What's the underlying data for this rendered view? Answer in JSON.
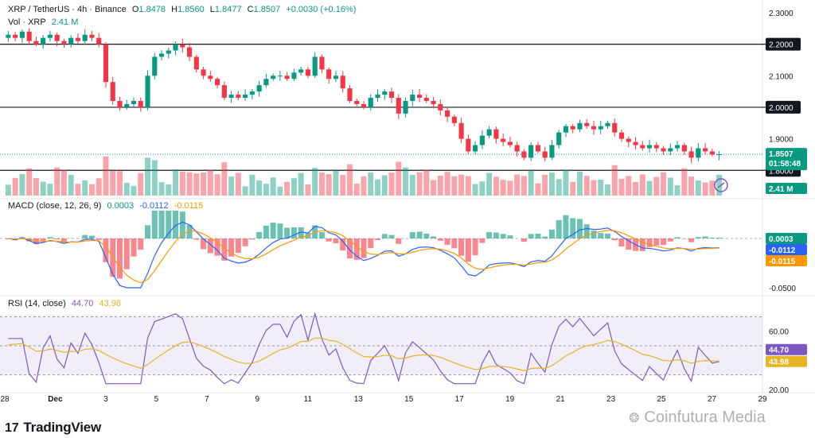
{
  "header": {
    "symbol": "XRP / TetherUS · 4h · Binance",
    "o_label": "O",
    "o_value": "1.8478",
    "h_label": "H",
    "h_value": "1.8560",
    "l_label": "L",
    "l_value": "1.8477",
    "c_label": "C",
    "c_value": "1.8507",
    "change": "+0.0030 (+0.16%)",
    "vol_label": "Vol · XRP",
    "vol_value": "2.41 M"
  },
  "macd_legend": {
    "label": "MACD (close, 12, 26, 9)",
    "hist": "0.0003",
    "macd": "-0.0112",
    "signal": "-0.0115"
  },
  "rsi_legend": {
    "label": "RSI (14, close)",
    "rsi": "44.70",
    "ma": "43.98"
  },
  "brand": {
    "logo": "17",
    "name": "TradingView"
  },
  "watermark": {
    "icon": "wechat-icon",
    "text": "Coinfutura Media"
  },
  "colors": {
    "up": "#089981",
    "down": "#f23645",
    "macd": "#2962ff",
    "signal": "#ff9800",
    "rsi": "#7e57c2",
    "rsi_ma": "#e6b422"
  },
  "chart_data": {
    "type": "candlestick",
    "symbol": "XRP/USDT",
    "timeframe": "4h",
    "x_labels": [
      "28",
      "Dec",
      "3",
      "5",
      "7",
      "9",
      "11",
      "13",
      "15",
      "17",
      "19",
      "21",
      "23",
      "25",
      "27",
      "29"
    ],
    "price_axis": {
      "ticks": [
        "2.3000",
        "2.2000",
        "2.1000",
        "2.0000",
        "1.9000",
        "1.8000"
      ],
      "range": [
        1.72,
        2.32
      ]
    },
    "horizontal_levels": [
      2.2,
      2.0,
      1.8
    ],
    "last_price": {
      "value": "1.8507",
      "countdown": "01:58:48"
    },
    "volume_tag": "2.41 M",
    "closes": [
      2.23,
      2.22,
      2.24,
      2.21,
      2.2,
      2.22,
      2.23,
      2.21,
      2.2,
      2.22,
      2.21,
      2.23,
      2.22,
      2.2,
      2.08,
      2.02,
      2.0,
      2.01,
      2.02,
      2.0,
      2.1,
      2.16,
      2.17,
      2.18,
      2.2,
      2.19,
      2.16,
      2.12,
      2.1,
      2.09,
      2.07,
      2.03,
      2.04,
      2.03,
      2.04,
      2.05,
      2.07,
      2.09,
      2.1,
      2.1,
      2.09,
      2.11,
      2.12,
      2.1,
      2.16,
      2.12,
      2.09,
      2.1,
      2.06,
      2.02,
      2.01,
      2.0,
      2.03,
      2.04,
      2.05,
      2.03,
      1.98,
      2.02,
      2.04,
      2.03,
      2.02,
      2.01,
      1.99,
      1.97,
      1.95,
      1.9,
      1.86,
      1.88,
      1.91,
      1.93,
      1.9,
      1.89,
      1.88,
      1.86,
      1.84,
      1.88,
      1.86,
      1.84,
      1.88,
      1.92,
      1.94,
      1.93,
      1.95,
      1.94,
      1.93,
      1.94,
      1.95,
      1.92,
      1.9,
      1.89,
      1.88,
      1.87,
      1.88,
      1.87,
      1.86,
      1.87,
      1.88,
      1.86,
      1.84,
      1.87,
      1.86,
      1.85,
      1.851
    ],
    "macd": {
      "hist": "0.0003",
      "macd": "-0.0112",
      "signal": "-0.0115",
      "axis_ticks": [
        "0.0000",
        "-0.0500"
      ]
    },
    "rsi": {
      "value": "44.70",
      "ma": "43.98",
      "axis_ticks": [
        "60.00",
        "20.00"
      ],
      "band": [
        30,
        70
      ]
    }
  }
}
